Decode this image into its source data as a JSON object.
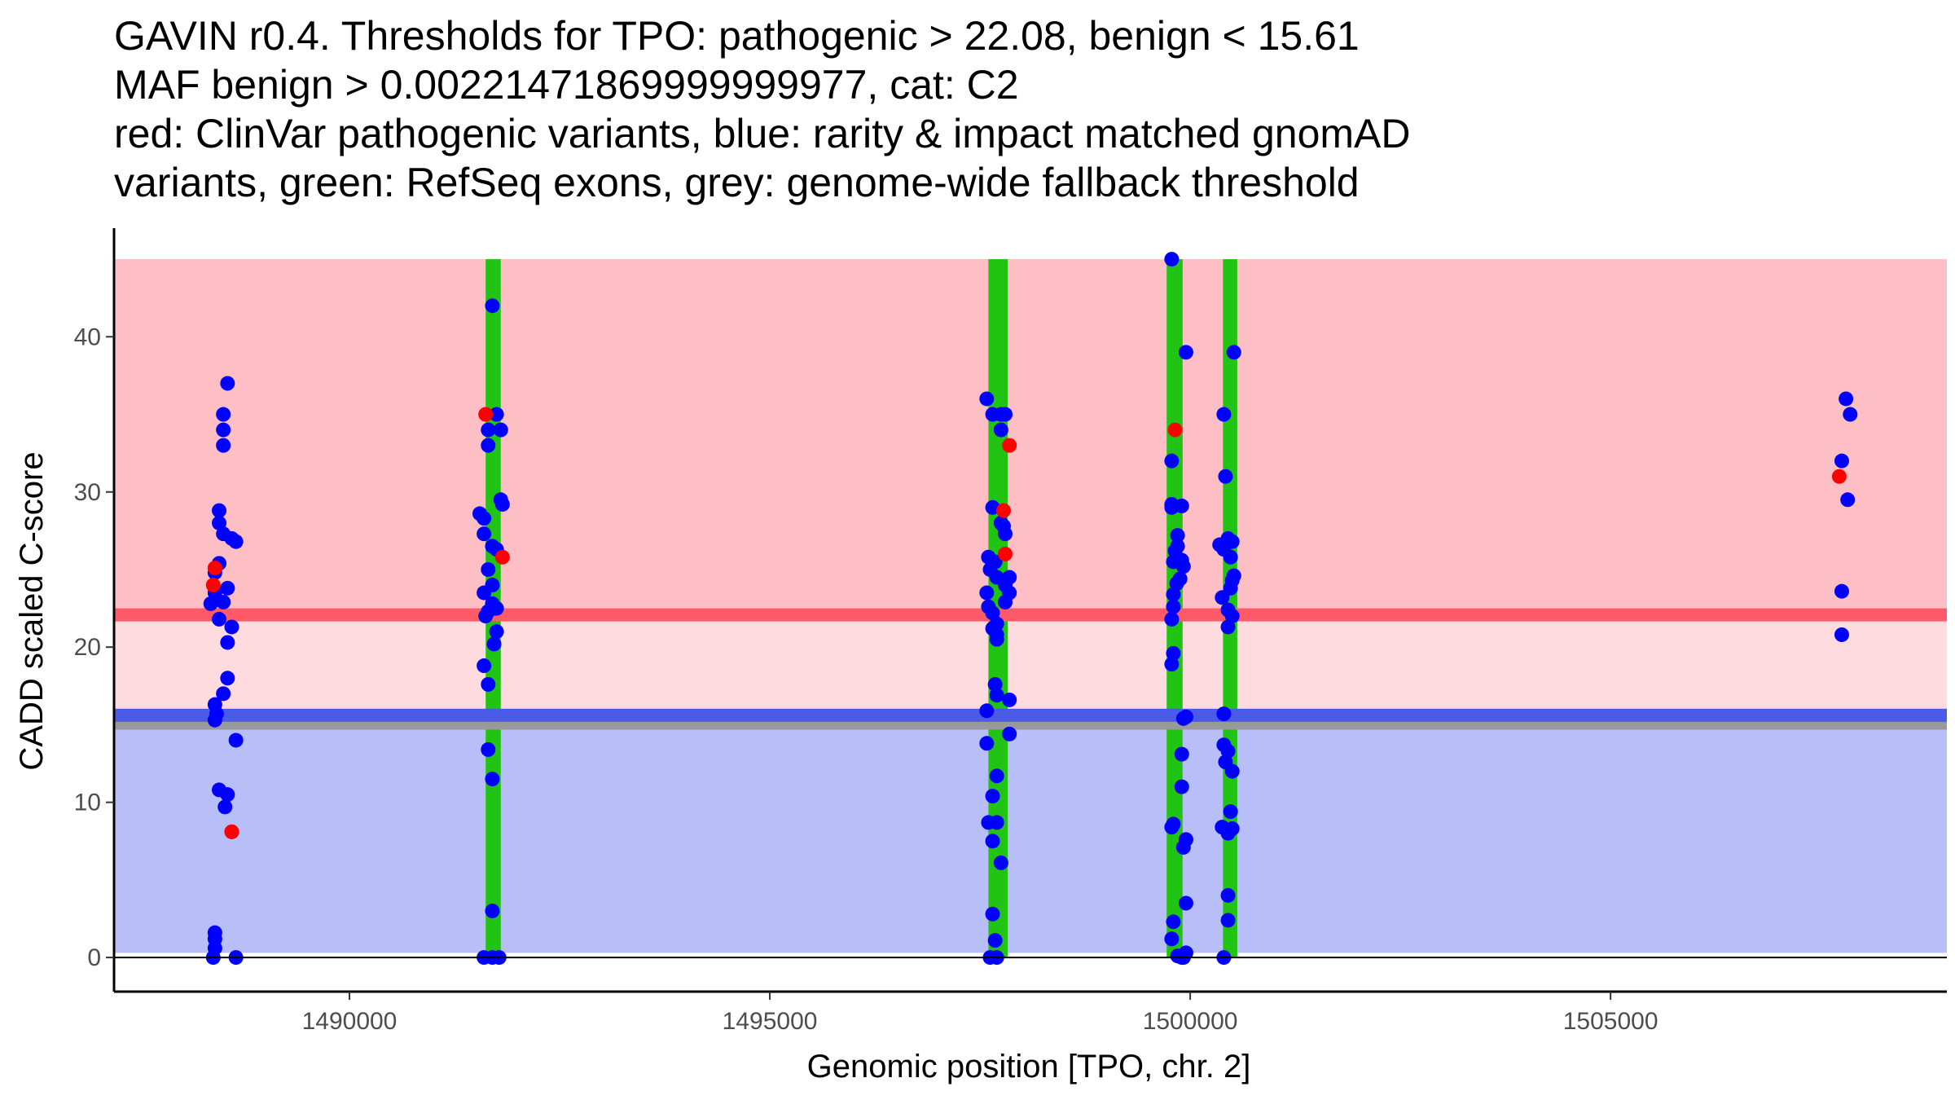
{
  "title_lines": [
    "GAVIN r0.4. Thresholds for TPO: pathogenic > 22.08, benign < 15.61",
    "MAF benign > 0.00221471869999999977, cat: C2",
    "red: ClinVar pathogenic variants, blue: rarity & impact matched gnomAD",
    "variants, green: RefSeq exons, grey: genome-wide fallback threshold"
  ],
  "colors": {
    "pathogenic_region": "#fdbec4",
    "intermediate_region": "#fddbde",
    "benign_region": "#b8bff8",
    "pathogenic_line": "#ff5a68",
    "benign_line": "#4a5be8",
    "fallback_line": "#999999",
    "exon": "#22c414",
    "clinvar_point": "#ff0000",
    "gnomad_point": "#0000ff"
  },
  "chart_data": {
    "type": "scatter",
    "title": "GAVIN r0.4. Thresholds for TPO: pathogenic > 22.08, benign < 15.61",
    "xlabel": "Genomic position [TPO, chr. 2]",
    "ylabel": "CADD scaled C-score",
    "xlim": [
      1487200,
      1509000
    ],
    "ylim": [
      -2.2,
      47
    ],
    "x_ticks": [
      1490000,
      1495000,
      1500000,
      1505000
    ],
    "x_tick_labels": [
      "1490000",
      "1495000",
      "1500000",
      "1505000"
    ],
    "y_ticks": [
      0,
      10,
      20,
      30,
      40
    ],
    "y_tick_labels": [
      "0",
      "10",
      "20",
      "30",
      "40"
    ],
    "grid": false,
    "regions": {
      "x_range": [
        1487200,
        1509000
      ],
      "pathogenic": [
        22.08,
        45
      ],
      "intermediate": [
        15.61,
        22.08
      ],
      "benign": [
        0.3,
        15.61
      ]
    },
    "thresholds": {
      "pathogenic": 22.08,
      "benign": 15.61,
      "fallback": 15.0
    },
    "exons": [
      {
        "start": 1491620,
        "end": 1491800
      },
      {
        "start": 1497600,
        "end": 1497830
      },
      {
        "start": 1499720,
        "end": 1499910
      },
      {
        "start": 1500390,
        "end": 1500560
      }
    ],
    "exon_y_range": [
      0,
      45
    ],
    "series": [
      {
        "name": "gnomAD (rarity & impact matched)",
        "points": [
          [
            1488350,
            22.8
          ],
          [
            1488450,
            25.4
          ],
          [
            1488400,
            23.5
          ],
          [
            1488500,
            22.9
          ],
          [
            1488550,
            23.8
          ],
          [
            1488400,
            24.8
          ],
          [
            1488500,
            27.3
          ],
          [
            1488450,
            28.0
          ],
          [
            1488600,
            27.0
          ],
          [
            1488450,
            28.8
          ],
          [
            1488650,
            26.8
          ],
          [
            1488500,
            35.0
          ],
          [
            1488500,
            34.0
          ],
          [
            1488500,
            33.0
          ],
          [
            1488550,
            37.0
          ],
          [
            1488450,
            21.8
          ],
          [
            1488600,
            21.3
          ],
          [
            1488550,
            20.3
          ],
          [
            1488550,
            18.0
          ],
          [
            1488500,
            17.0
          ],
          [
            1488400,
            16.3
          ],
          [
            1488400,
            15.3
          ],
          [
            1488420,
            15.7
          ],
          [
            1488650,
            14.0
          ],
          [
            1488450,
            10.8
          ],
          [
            1488550,
            10.5
          ],
          [
            1488520,
            9.7
          ],
          [
            1488600,
            8.1
          ],
          [
            1488400,
            1.6
          ],
          [
            1488400,
            1.2
          ],
          [
            1488400,
            0.6
          ],
          [
            1488380,
            0.0
          ],
          [
            1488650,
            0.0
          ],
          [
            1491550,
            28.6
          ],
          [
            1491600,
            28.3
          ],
          [
            1491600,
            27.3
          ],
          [
            1491650,
            34.0
          ],
          [
            1491750,
            35.0
          ],
          [
            1491800,
            34.0
          ],
          [
            1491650,
            33.0
          ],
          [
            1491700,
            26.5
          ],
          [
            1491750,
            26.3
          ],
          [
            1491800,
            29.5
          ],
          [
            1491820,
            29.2
          ],
          [
            1491650,
            25.0
          ],
          [
            1491700,
            24.0
          ],
          [
            1491600,
            23.5
          ],
          [
            1491700,
            22.8
          ],
          [
            1491650,
            22.3
          ],
          [
            1491750,
            22.5
          ],
          [
            1491620,
            22.0
          ],
          [
            1491750,
            21.0
          ],
          [
            1491720,
            20.2
          ],
          [
            1491600,
            18.8
          ],
          [
            1491650,
            17.6
          ],
          [
            1491650,
            13.4
          ],
          [
            1491700,
            11.5
          ],
          [
            1491700,
            42.0
          ],
          [
            1491700,
            3.0
          ],
          [
            1491600,
            0.0
          ],
          [
            1491700,
            0.0
          ],
          [
            1491780,
            0.0
          ],
          [
            1497580,
            36.0
          ],
          [
            1497650,
            35.0
          ],
          [
            1497750,
            35.0
          ],
          [
            1497800,
            35.0
          ],
          [
            1497750,
            34.0
          ],
          [
            1497650,
            29.0
          ],
          [
            1497750,
            28.0
          ],
          [
            1497800,
            27.3
          ],
          [
            1497780,
            27.8
          ],
          [
            1497600,
            25.8
          ],
          [
            1497620,
            25.0
          ],
          [
            1497700,
            24.5
          ],
          [
            1497800,
            24.0
          ],
          [
            1497850,
            24.5
          ],
          [
            1497680,
            25.5
          ],
          [
            1497580,
            23.5
          ],
          [
            1497600,
            22.6
          ],
          [
            1497650,
            22.2
          ],
          [
            1497850,
            23.5
          ],
          [
            1497800,
            22.9
          ],
          [
            1497650,
            21.2
          ],
          [
            1497700,
            21.5
          ],
          [
            1497700,
            20.5
          ],
          [
            1497700,
            20.8
          ],
          [
            1497680,
            17.6
          ],
          [
            1497700,
            16.9
          ],
          [
            1497850,
            16.6
          ],
          [
            1497580,
            15.9
          ],
          [
            1497850,
            14.4
          ],
          [
            1497580,
            13.8
          ],
          [
            1497700,
            11.7
          ],
          [
            1497650,
            10.4
          ],
          [
            1497600,
            8.7
          ],
          [
            1497700,
            8.7
          ],
          [
            1497650,
            7.5
          ],
          [
            1497750,
            6.1
          ],
          [
            1497650,
            2.8
          ],
          [
            1497680,
            1.1
          ],
          [
            1497620,
            0.0
          ],
          [
            1497700,
            0.0
          ],
          [
            1499780,
            45.0
          ],
          [
            1499950,
            39.0
          ],
          [
            1499780,
            32.0
          ],
          [
            1499780,
            29.2
          ],
          [
            1499780,
            29.0
          ],
          [
            1499900,
            29.1
          ],
          [
            1499850,
            27.2
          ],
          [
            1499820,
            26.2
          ],
          [
            1499850,
            26.5
          ],
          [
            1499800,
            25.5
          ],
          [
            1499900,
            25.6
          ],
          [
            1499920,
            25.2
          ],
          [
            1499880,
            24.4
          ],
          [
            1499840,
            24.1
          ],
          [
            1499800,
            23.4
          ],
          [
            1499800,
            22.6
          ],
          [
            1499780,
            21.8
          ],
          [
            1499800,
            19.6
          ],
          [
            1499780,
            18.9
          ],
          [
            1499920,
            15.4
          ],
          [
            1499950,
            15.5
          ],
          [
            1499900,
            13.1
          ],
          [
            1499900,
            11.0
          ],
          [
            1499800,
            8.6
          ],
          [
            1499780,
            8.4
          ],
          [
            1499950,
            7.6
          ],
          [
            1499920,
            7.1
          ],
          [
            1499950,
            3.5
          ],
          [
            1499800,
            2.3
          ],
          [
            1499780,
            1.2
          ],
          [
            1499850,
            0.1
          ],
          [
            1499900,
            0.0
          ],
          [
            1499950,
            0.3
          ],
          [
            1499920,
            0.0
          ],
          [
            1500520,
            39.0
          ],
          [
            1500400,
            35.0
          ],
          [
            1500420,
            31.0
          ],
          [
            1500350,
            26.6
          ],
          [
            1500400,
            26.3
          ],
          [
            1500450,
            27.0
          ],
          [
            1500500,
            26.8
          ],
          [
            1500480,
            25.8
          ],
          [
            1500520,
            24.6
          ],
          [
            1500500,
            24.3
          ],
          [
            1500480,
            23.8
          ],
          [
            1500380,
            23.2
          ],
          [
            1500450,
            22.4
          ],
          [
            1500500,
            22.0
          ],
          [
            1500450,
            21.3
          ],
          [
            1500400,
            15.7
          ],
          [
            1500400,
            13.7
          ],
          [
            1500450,
            13.3
          ],
          [
            1500420,
            12.6
          ],
          [
            1500500,
            12.0
          ],
          [
            1500480,
            9.4
          ],
          [
            1500380,
            8.4
          ],
          [
            1500500,
            8.3
          ],
          [
            1500450,
            8.0
          ],
          [
            1500450,
            4.0
          ],
          [
            1500450,
            2.4
          ],
          [
            1500400,
            0.0
          ],
          [
            1507800,
            36.0
          ],
          [
            1507850,
            35.0
          ],
          [
            1507750,
            32.0
          ],
          [
            1507820,
            29.5
          ],
          [
            1507750,
            23.6
          ],
          [
            1507750,
            20.8
          ]
        ]
      },
      {
        "name": "ClinVar pathogenic",
        "points": [
          [
            1488380,
            24.0
          ],
          [
            1488400,
            25.1
          ],
          [
            1488600,
            8.1
          ],
          [
            1491620,
            35.0
          ],
          [
            1491820,
            25.8
          ],
          [
            1497780,
            28.8
          ],
          [
            1497800,
            26.0
          ],
          [
            1497850,
            33.0
          ],
          [
            1499820,
            34.0
          ],
          [
            1507720,
            31.0
          ]
        ]
      }
    ]
  }
}
